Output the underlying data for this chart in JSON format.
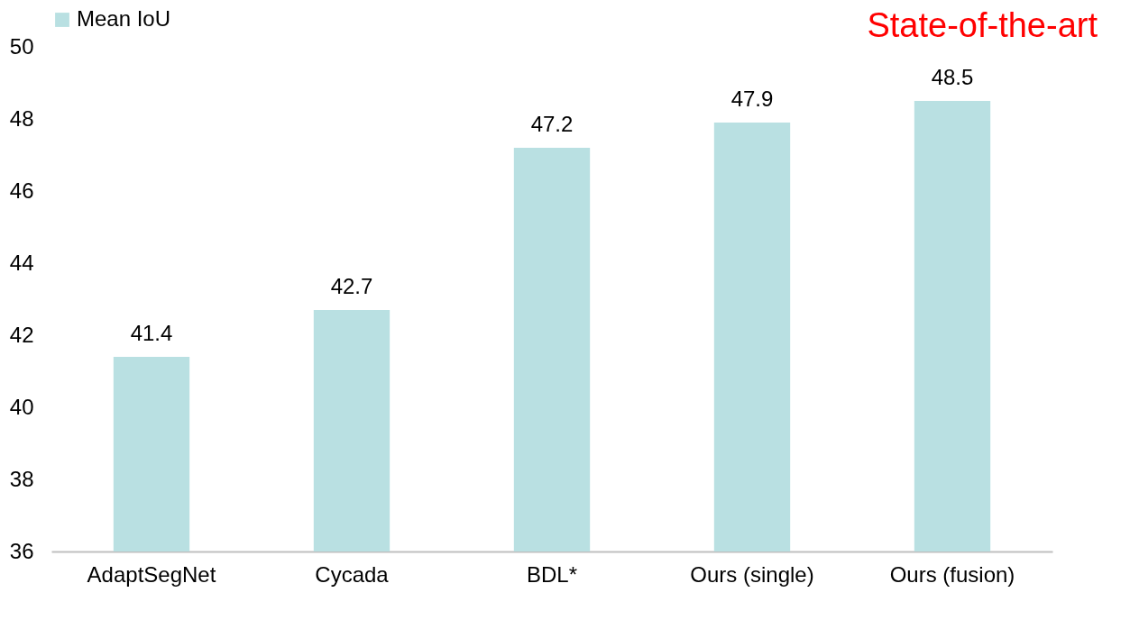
{
  "chart_data": {
    "type": "bar",
    "categories": [
      "AdaptSegNet",
      "Cycada",
      "BDL*",
      "Ours (single)",
      "Ours (fusion)"
    ],
    "series": [
      {
        "name": "Mean IoU",
        "color": "#b9e0e2",
        "values": [
          41.4,
          42.7,
          47.2,
          47.9,
          48.5
        ]
      }
    ],
    "ylim": [
      36,
      50
    ],
    "yticks": [
      36,
      38,
      40,
      42,
      44,
      46,
      48,
      50
    ],
    "grid": false,
    "legend": "top",
    "data_labels": true,
    "annotations": [
      "State-of-the-art"
    ]
  }
}
